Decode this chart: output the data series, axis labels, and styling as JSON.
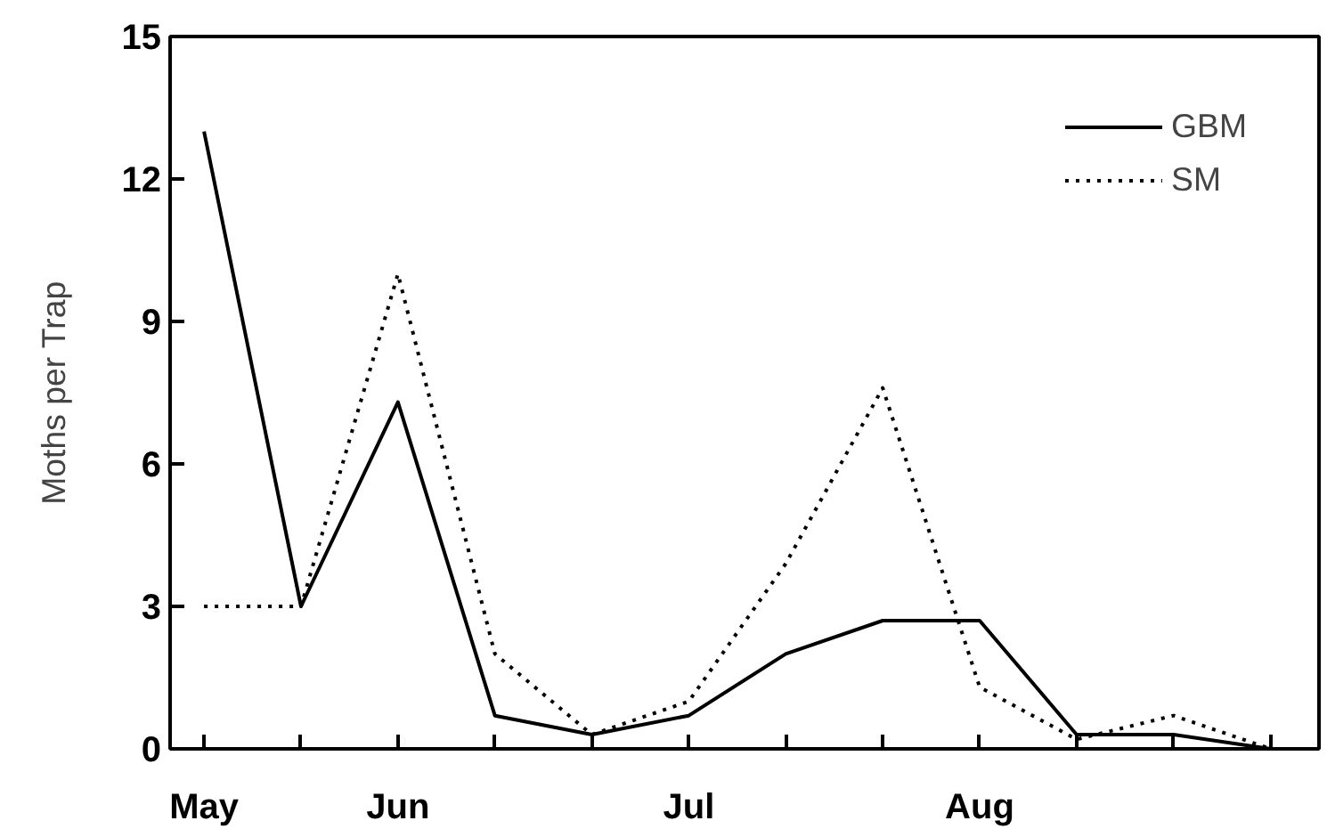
{
  "chart_data": {
    "type": "line",
    "ylabel": "Moths per Trap",
    "categories": [
      "May",
      null,
      "Jun",
      null,
      null,
      "Jul",
      null,
      null,
      "Aug",
      null,
      null,
      null
    ],
    "ylim": [
      0,
      15
    ],
    "yticks": [
      0,
      3,
      6,
      9,
      12,
      15
    ],
    "series": [
      {
        "name": "GBM",
        "color": "#000000",
        "line_style": "solid",
        "values": [
          13,
          3,
          7.3,
          0.7,
          0.3,
          0.7,
          2,
          2.7,
          2.7,
          0.3,
          0.3,
          0
        ]
      },
      {
        "name": "SM",
        "color": "#000000",
        "line_style": "dotted",
        "values": [
          3,
          3,
          10,
          2,
          0.3,
          1,
          3.9,
          7.6,
          1.3,
          0.2,
          0.7,
          0
        ]
      }
    ],
    "grid": false,
    "legend": "top right",
    "marker": "none"
  }
}
